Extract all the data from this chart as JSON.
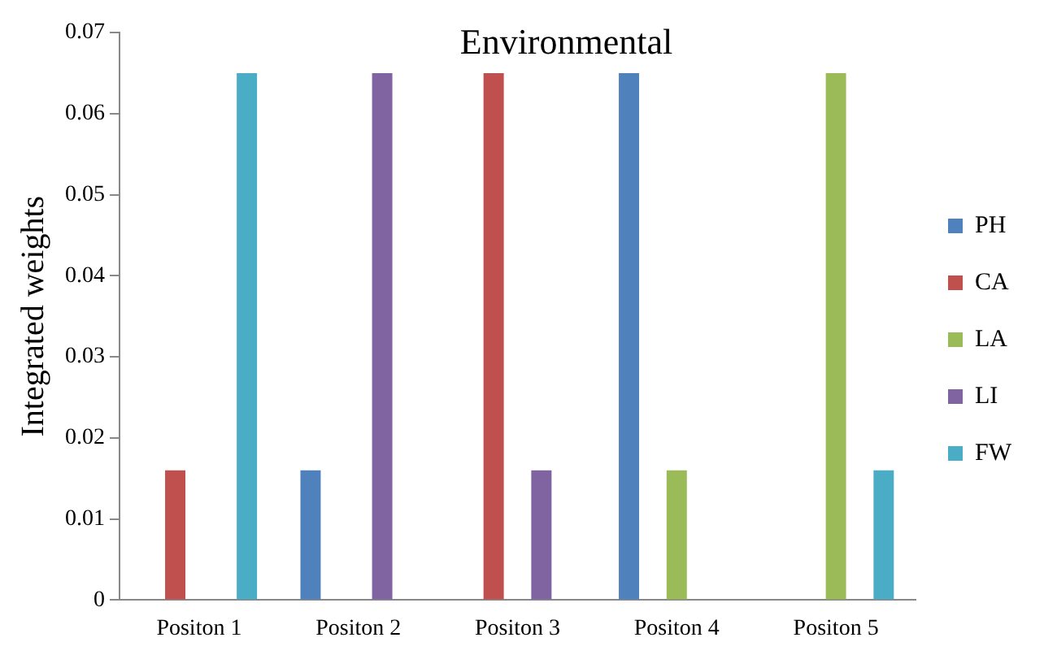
{
  "chart_data": {
    "type": "bar",
    "title": "Environmental",
    "ylabel": "Integrated weights",
    "categories": [
      "Positon 1",
      "Positon 2",
      "Positon 3",
      "Positon 4",
      "Positon 5"
    ],
    "series": [
      {
        "name": "PH",
        "color": "#4f81bd",
        "values": [
          0,
          0.016,
          0,
          0.065,
          0
        ]
      },
      {
        "name": "CA",
        "color": "#c0504d",
        "values": [
          0.016,
          0,
          0.065,
          0,
          0
        ]
      },
      {
        "name": "LA",
        "color": "#9bbb59",
        "values": [
          0,
          0,
          0,
          0.016,
          0.065
        ]
      },
      {
        "name": "LI",
        "color": "#8064a2",
        "values": [
          0,
          0.065,
          0.016,
          0,
          0
        ]
      },
      {
        "name": "FW",
        "color": "#4bacc6",
        "values": [
          0.065,
          0,
          0,
          0,
          0.016
        ]
      }
    ],
    "ylim": [
      0,
      0.07
    ],
    "yticks": [
      0,
      0.01,
      0.02,
      0.03,
      0.04,
      0.05,
      0.06,
      0.07
    ],
    "grid": false,
    "legend": "right"
  }
}
